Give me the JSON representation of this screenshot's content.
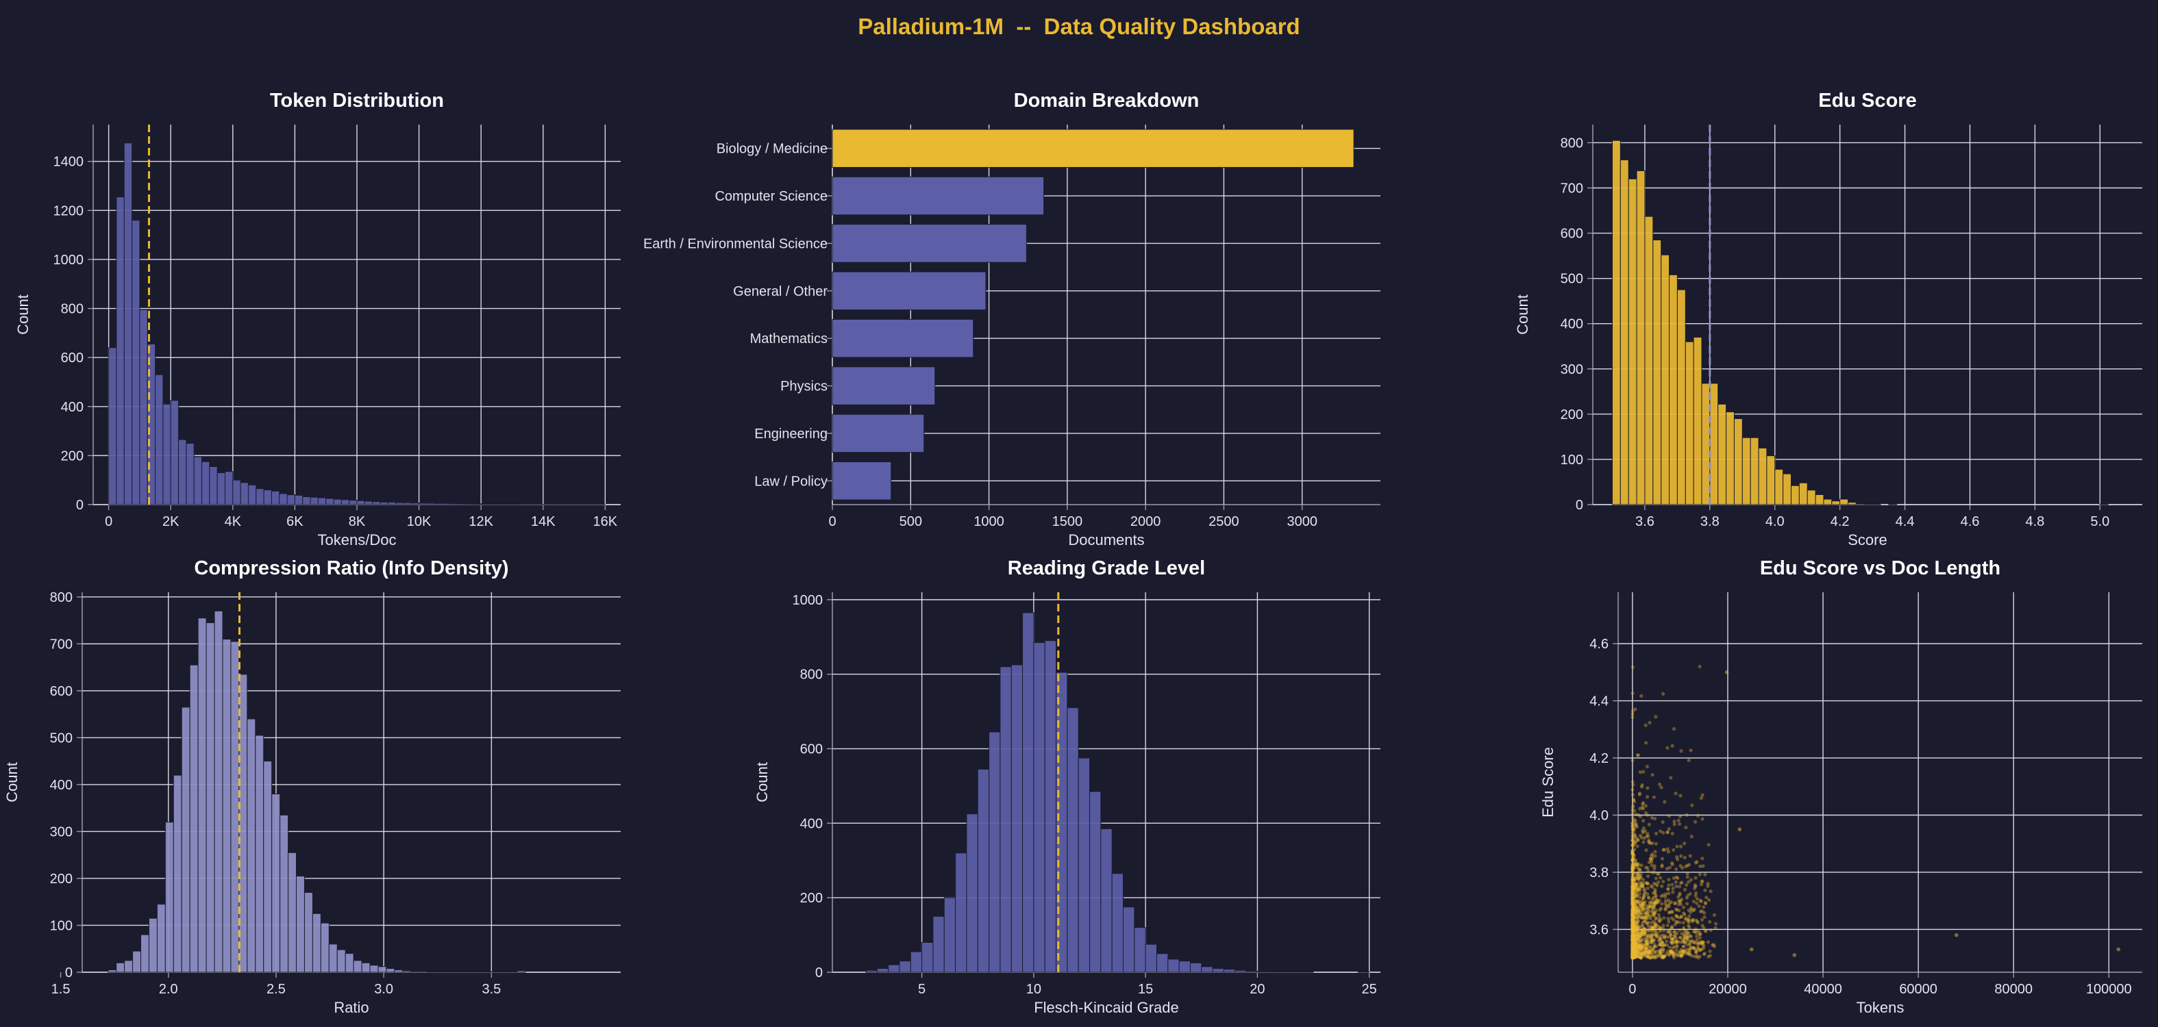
{
  "page": {
    "title": "Palladium-1M  --  Data Quality Dashboard",
    "colors": {
      "background": "#1b1b2e",
      "accent_gold": "#e9b931",
      "bar_blue": "#5c5fa8",
      "bar_lavender": "#8e8fc5",
      "grid": "#d9d9e3",
      "text": "#e4e4ee"
    }
  },
  "chart_data": [
    {
      "id": "tokens",
      "type": "histogram",
      "title": "Token Distribution",
      "xlabel": "Tokens/Doc",
      "ylabel": "Count",
      "xlim": [
        -500,
        16500
      ],
      "ylim": [
        0,
        1550
      ],
      "x_ticks": [
        0,
        2000,
        4000,
        6000,
        8000,
        10000,
        12000,
        14000,
        16000
      ],
      "x_tick_labels": [
        "0",
        "2K",
        "4K",
        "6K",
        "8K",
        "10K",
        "12K",
        "14K",
        "16K"
      ],
      "y_ticks": [
        0,
        200,
        400,
        600,
        800,
        1000,
        1200,
        1400
      ],
      "bin_start": 0,
      "bin_width": 250,
      "values": [
        640,
        1255,
        1475,
        1160,
        795,
        655,
        530,
        410,
        425,
        265,
        250,
        195,
        175,
        155,
        130,
        135,
        100,
        90,
        80,
        65,
        60,
        55,
        45,
        40,
        38,
        32,
        30,
        28,
        25,
        22,
        20,
        18,
        16,
        14,
        12,
        10,
        10,
        8,
        8,
        7,
        6,
        6,
        5,
        5,
        4,
        4,
        3,
        3,
        3,
        2,
        2,
        2,
        2,
        1,
        1,
        1,
        1,
        1,
        1,
        1,
        1,
        1,
        1,
        1
      ],
      "bar_color": "#5c5fa8",
      "ref_line": {
        "x": 1300,
        "color": "#e9b931"
      }
    },
    {
      "id": "domains",
      "type": "barh",
      "title": "Domain Breakdown",
      "xlabel": "Documents",
      "xlim": [
        0,
        3500
      ],
      "x_ticks": [
        0,
        500,
        1000,
        1500,
        2000,
        2500,
        3000
      ],
      "categories": [
        "Biology / Medicine",
        "Computer Science",
        "Earth / Environmental Science",
        "General / Other",
        "Mathematics",
        "Physics",
        "Engineering",
        "Law / Policy"
      ],
      "values": [
        3330,
        1350,
        1240,
        980,
        900,
        655,
        585,
        375
      ],
      "bar_colors": [
        "#e9b931",
        "#5c5fa8",
        "#5c5fa8",
        "#5c5fa8",
        "#5c5fa8",
        "#5c5fa8",
        "#5c5fa8",
        "#5c5fa8"
      ]
    },
    {
      "id": "edu",
      "type": "histogram",
      "title": "Edu Score",
      "xlabel": "Score",
      "ylabel": "Count",
      "xlim": [
        3.44,
        5.13
      ],
      "ylim": [
        0,
        840
      ],
      "x_ticks": [
        3.6,
        3.8,
        4.0,
        4.2,
        4.4,
        4.6,
        4.8,
        5.0
      ],
      "x_tick_labels": [
        "3.6",
        "3.8",
        "4.0",
        "4.2",
        "4.4",
        "4.6",
        "4.8",
        "5.0"
      ],
      "y_ticks": [
        0,
        100,
        200,
        300,
        400,
        500,
        600,
        700,
        800
      ],
      "bin_start": 3.5,
      "bin_width": 0.025,
      "values": [
        805,
        762,
        720,
        738,
        637,
        585,
        552,
        508,
        475,
        360,
        370,
        268,
        268,
        222,
        205,
        190,
        148,
        148,
        125,
        108,
        78,
        68,
        42,
        48,
        32,
        22,
        12,
        8,
        12,
        5,
        2,
        1,
        1,
        0,
        1,
        0,
        0,
        0,
        0,
        0,
        0,
        0,
        0,
        0,
        0,
        0,
        0,
        0,
        0,
        0,
        0,
        0,
        0,
        0,
        0,
        0,
        0,
        0,
        0,
        0,
        1
      ],
      "bar_color": "#e9b931",
      "ref_line": {
        "x": 3.8,
        "color": "#8e8fc5"
      }
    },
    {
      "id": "compression",
      "type": "histogram",
      "title": "Compression Ratio (Info Density)",
      "xlabel": "Ratio",
      "ylabel": "Count",
      "xlim": [
        1.6,
        4.1
      ],
      "ylim": [
        0,
        810
      ],
      "x_ticks": [
        1.5,
        2.0,
        2.5,
        3.0,
        3.5
      ],
      "x_tick_labels": [
        "1.5",
        "2.0",
        "2.5",
        "3.0",
        "3.5"
      ],
      "y_ticks": [
        0,
        100,
        200,
        300,
        400,
        500,
        600,
        700,
        800
      ],
      "bin_start": 1.72,
      "bin_width": 0.038,
      "values": [
        5,
        20,
        25,
        45,
        80,
        115,
        145,
        320,
        420,
        565,
        655,
        755,
        745,
        770,
        710,
        705,
        635,
        540,
        505,
        450,
        380,
        335,
        255,
        205,
        170,
        125,
        105,
        60,
        48,
        40,
        25,
        20,
        15,
        12,
        8,
        5,
        3,
        2,
        2,
        1,
        1,
        1,
        1,
        1,
        1,
        1,
        1,
        1,
        1,
        1,
        3
      ],
      "bar_color": "#8e8fc5",
      "ref_line": {
        "x": 2.33,
        "color": "#e9b931"
      }
    },
    {
      "id": "reading",
      "type": "histogram",
      "title": "Reading Grade Level",
      "xlabel": "Flesch-Kincaid Grade",
      "ylabel": "Count",
      "xlim": [
        1,
        25.5
      ],
      "ylim": [
        0,
        1020
      ],
      "x_ticks": [
        5,
        10,
        15,
        20,
        25
      ],
      "x_tick_labels": [
        "5",
        "10",
        "15",
        "20",
        "25"
      ],
      "y_ticks": [
        0,
        200,
        400,
        600,
        800,
        1000
      ],
      "bin_start": 2.5,
      "bin_width": 0.5,
      "values": [
        5,
        10,
        20,
        30,
        55,
        80,
        150,
        200,
        320,
        425,
        545,
        645,
        820,
        825,
        965,
        885,
        890,
        805,
        710,
        575,
        485,
        385,
        265,
        175,
        120,
        75,
        50,
        35,
        30,
        25,
        15,
        10,
        8,
        5,
        3,
        2,
        1,
        1,
        1,
        1,
        0,
        0,
        0,
        0,
        1
      ],
      "bar_color": "#5c5fa8",
      "ref_line": {
        "x": 11.1,
        "color": "#e9b931"
      }
    },
    {
      "id": "scatter",
      "type": "scatter",
      "title": "Edu Score vs Doc Length",
      "xlabel": "Tokens",
      "ylabel": "Edu Score",
      "xlim": [
        -3000,
        107000
      ],
      "ylim": [
        3.45,
        4.78
      ],
      "x_ticks": [
        0,
        20000,
        40000,
        60000,
        80000,
        100000
      ],
      "x_tick_labels": [
        "0",
        "20000",
        "40000",
        "60000",
        "80000",
        "100000"
      ],
      "y_ticks": [
        3.6,
        3.8,
        4.0,
        4.2,
        4.4,
        4.6
      ],
      "y_tick_labels": [
        "3.6",
        "3.8",
        "4.0",
        "4.2",
        "4.4",
        "4.6"
      ],
      "point_color": "#e9b931",
      "sample_size": 1600,
      "points": [
        [
          19800,
          4.5
        ],
        [
          22500,
          3.95
        ],
        [
          25000,
          3.53
        ],
        [
          34000,
          3.51
        ],
        [
          68000,
          3.58
        ],
        [
          102000,
          3.53
        ]
      ]
    }
  ]
}
